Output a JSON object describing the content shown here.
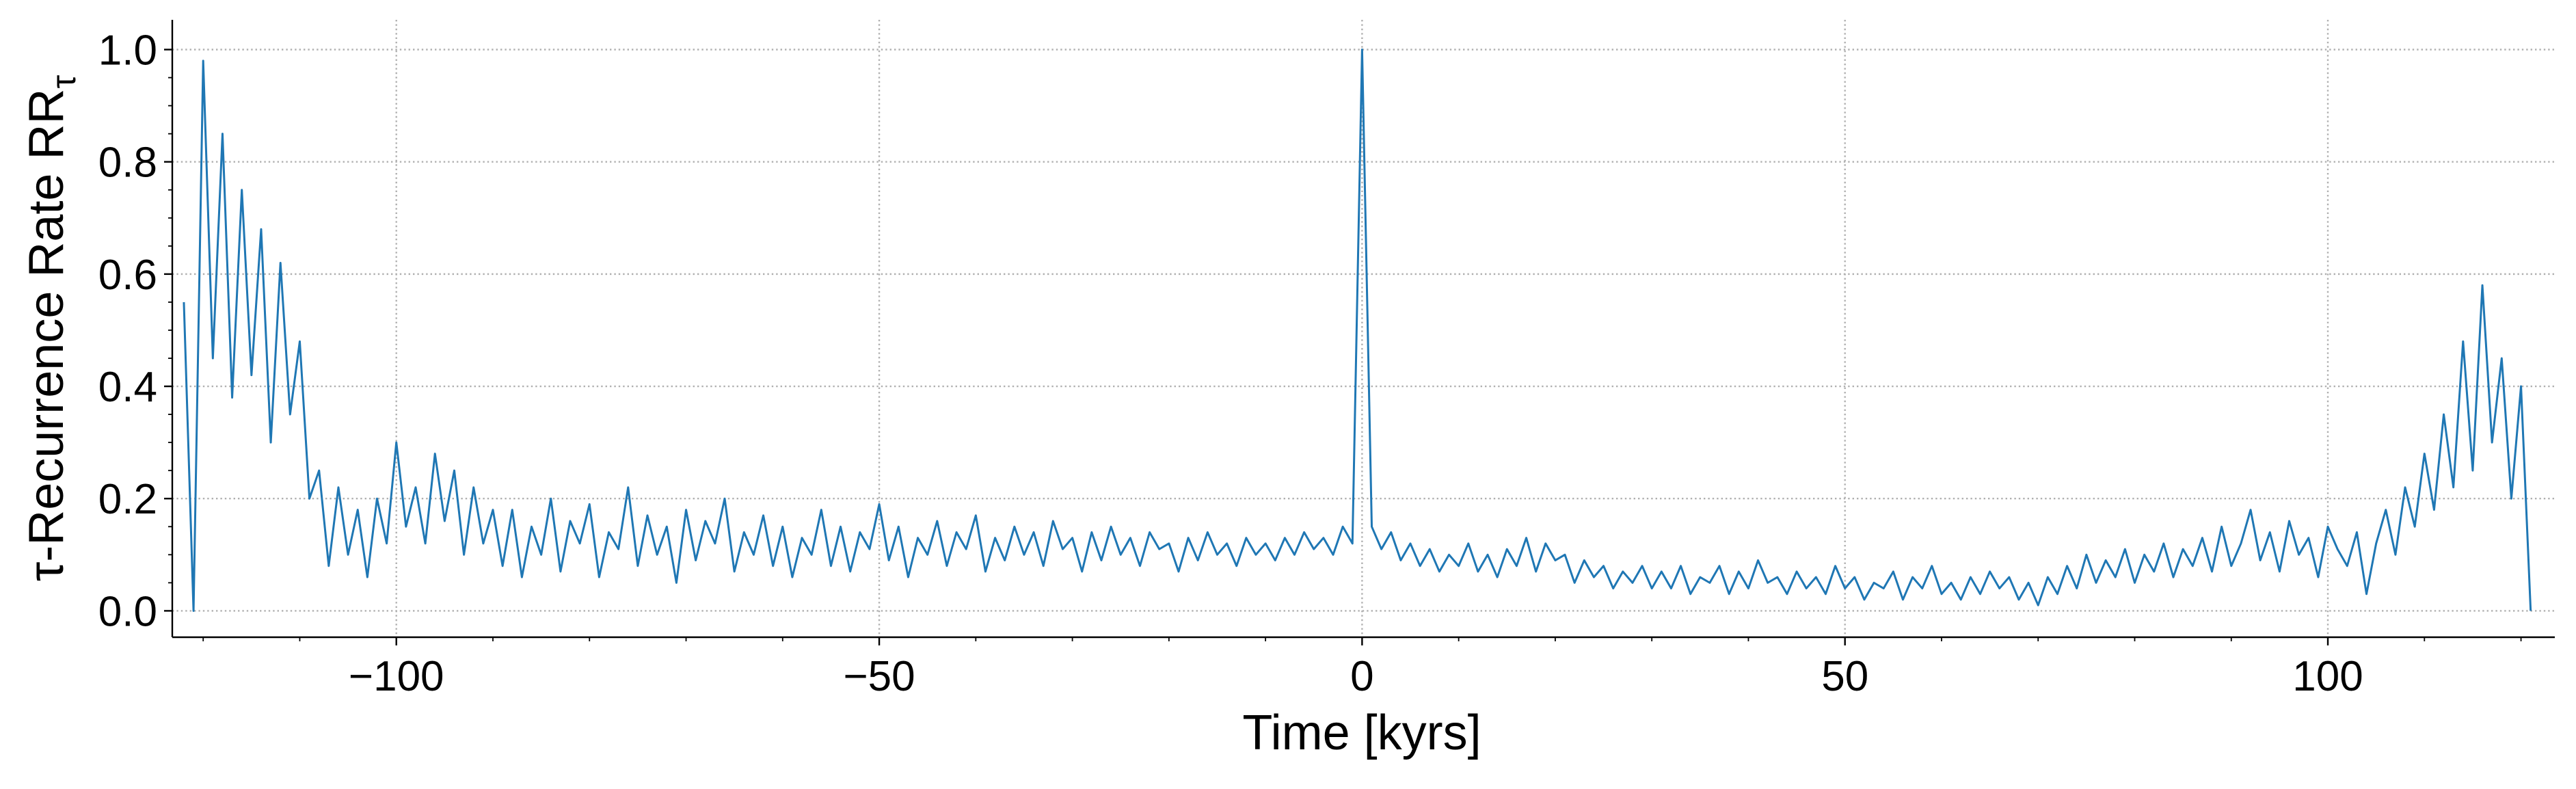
{
  "chart_data": {
    "type": "line",
    "xlabel": "Time [kyrs]",
    "ylabel": "τ-Recurrence Rate RR",
    "ylabel_sub": "τ",
    "x": [
      -122,
      -121,
      -120,
      -119,
      -118,
      -117,
      -116,
      -115,
      -114,
      -113,
      -112,
      -111,
      -110,
      -109,
      -108,
      -107,
      -106,
      -105,
      -104,
      -103,
      -102,
      -101,
      -100,
      -99,
      -98,
      -97,
      -96,
      -95,
      -94,
      -93,
      -92,
      -91,
      -90,
      -89,
      -88,
      -87,
      -86,
      -85,
      -84,
      -83,
      -82,
      -81,
      -80,
      -79,
      -78,
      -77,
      -76,
      -75,
      -74,
      -73,
      -72,
      -71,
      -70,
      -69,
      -68,
      -67,
      -66,
      -65,
      -64,
      -63,
      -62,
      -61,
      -60,
      -59,
      -58,
      -57,
      -56,
      -55,
      -54,
      -53,
      -52,
      -51,
      -50,
      -49,
      -48,
      -47,
      -46,
      -45,
      -44,
      -43,
      -42,
      -41,
      -40,
      -39,
      -38,
      -37,
      -36,
      -35,
      -34,
      -33,
      -32,
      -31,
      -30,
      -29,
      -28,
      -27,
      -26,
      -25,
      -24,
      -23,
      -22,
      -21,
      -20,
      -19,
      -18,
      -17,
      -16,
      -15,
      -14,
      -13,
      -12,
      -11,
      -10,
      -9,
      -8,
      -7,
      -6,
      -5,
      -4,
      -3,
      -2,
      -1,
      0,
      1,
      2,
      3,
      4,
      5,
      6,
      7,
      8,
      9,
      10,
      11,
      12,
      13,
      14,
      15,
      16,
      17,
      18,
      19,
      20,
      21,
      22,
      23,
      24,
      25,
      26,
      27,
      28,
      29,
      30,
      31,
      32,
      33,
      34,
      35,
      36,
      37,
      38,
      39,
      40,
      41,
      42,
      43,
      44,
      45,
      46,
      47,
      48,
      49,
      50,
      51,
      52,
      53,
      54,
      55,
      56,
      57,
      58,
      59,
      60,
      61,
      62,
      63,
      64,
      65,
      66,
      67,
      68,
      69,
      70,
      71,
      72,
      73,
      74,
      75,
      76,
      77,
      78,
      79,
      80,
      81,
      82,
      83,
      84,
      85,
      86,
      87,
      88,
      89,
      90,
      91,
      92,
      93,
      94,
      95,
      96,
      97,
      98,
      99,
      100,
      101,
      102,
      103,
      104,
      105,
      106,
      107,
      108,
      109,
      110,
      111,
      112,
      113,
      114,
      115,
      116,
      117,
      118,
      119,
      120,
      121
    ],
    "series": [
      {
        "color": "#1f77b4",
        "values": [
          0.55,
          0.0,
          0.98,
          0.45,
          0.85,
          0.38,
          0.75,
          0.42,
          0.68,
          0.3,
          0.62,
          0.35,
          0.48,
          0.2,
          0.25,
          0.08,
          0.22,
          0.1,
          0.18,
          0.06,
          0.2,
          0.12,
          0.3,
          0.15,
          0.22,
          0.12,
          0.28,
          0.16,
          0.25,
          0.1,
          0.22,
          0.12,
          0.18,
          0.08,
          0.18,
          0.06,
          0.15,
          0.1,
          0.2,
          0.07,
          0.16,
          0.12,
          0.19,
          0.06,
          0.14,
          0.11,
          0.22,
          0.08,
          0.17,
          0.1,
          0.15,
          0.05,
          0.18,
          0.09,
          0.16,
          0.12,
          0.2,
          0.07,
          0.14,
          0.1,
          0.17,
          0.08,
          0.15,
          0.06,
          0.13,
          0.1,
          0.18,
          0.08,
          0.15,
          0.07,
          0.14,
          0.11,
          0.19,
          0.09,
          0.15,
          0.06,
          0.13,
          0.1,
          0.16,
          0.08,
          0.14,
          0.11,
          0.17,
          0.07,
          0.13,
          0.09,
          0.15,
          0.1,
          0.14,
          0.08,
          0.16,
          0.11,
          0.13,
          0.07,
          0.14,
          0.09,
          0.15,
          0.1,
          0.13,
          0.08,
          0.14,
          0.11,
          0.12,
          0.07,
          0.13,
          0.09,
          0.14,
          0.1,
          0.12,
          0.08,
          0.13,
          0.1,
          0.12,
          0.09,
          0.13,
          0.1,
          0.14,
          0.11,
          0.13,
          0.1,
          0.15,
          0.12,
          1.0,
          0.15,
          0.11,
          0.14,
          0.09,
          0.12,
          0.08,
          0.11,
          0.07,
          0.1,
          0.08,
          0.12,
          0.07,
          0.1,
          0.06,
          0.11,
          0.08,
          0.13,
          0.07,
          0.12,
          0.09,
          0.1,
          0.05,
          0.09,
          0.06,
          0.08,
          0.04,
          0.07,
          0.05,
          0.08,
          0.04,
          0.07,
          0.04,
          0.08,
          0.03,
          0.06,
          0.05,
          0.08,
          0.03,
          0.07,
          0.04,
          0.09,
          0.05,
          0.06,
          0.03,
          0.07,
          0.04,
          0.06,
          0.03,
          0.08,
          0.04,
          0.06,
          0.02,
          0.05,
          0.04,
          0.07,
          0.02,
          0.06,
          0.04,
          0.08,
          0.03,
          0.05,
          0.02,
          0.06,
          0.03,
          0.07,
          0.04,
          0.06,
          0.02,
          0.05,
          0.01,
          0.06,
          0.03,
          0.08,
          0.04,
          0.1,
          0.05,
          0.09,
          0.06,
          0.11,
          0.05,
          0.1,
          0.07,
          0.12,
          0.06,
          0.11,
          0.08,
          0.13,
          0.07,
          0.15,
          0.08,
          0.12,
          0.18,
          0.09,
          0.14,
          0.07,
          0.16,
          0.1,
          0.13,
          0.06,
          0.15,
          0.11,
          0.08,
          0.14,
          0.03,
          0.12,
          0.18,
          0.1,
          0.22,
          0.15,
          0.28,
          0.18,
          0.35,
          0.22,
          0.48,
          0.25,
          0.58,
          0.3,
          0.45,
          0.2,
          0.4,
          0.0
        ]
      }
    ],
    "xlim": [
      -123.2,
      123.5
    ],
    "ylim": [
      -0.047,
      1.053
    ],
    "xticks": [
      {
        "value": -100,
        "label": "−100"
      },
      {
        "value": -50,
        "label": "−50"
      },
      0,
      50,
      100
    ],
    "yticks": [
      {
        "value": 0,
        "label": "0.0"
      },
      0.2,
      0.4,
      0.6,
      0.8,
      {
        "value": 1,
        "label": "1.0"
      }
    ],
    "xminorticks": [
      -120,
      -110,
      -90,
      -80,
      -70,
      -60,
      -40,
      -30,
      -20,
      -10,
      10,
      20,
      30,
      40,
      60,
      70,
      80,
      90,
      110,
      120
    ],
    "yminorticks": [
      0.05,
      0.1,
      0.15,
      0.25,
      0.3,
      0.35,
      0.45,
      0.5,
      0.55,
      0.65,
      0.7,
      0.75,
      0.85,
      0.9,
      0.95
    ],
    "grid": true
  }
}
